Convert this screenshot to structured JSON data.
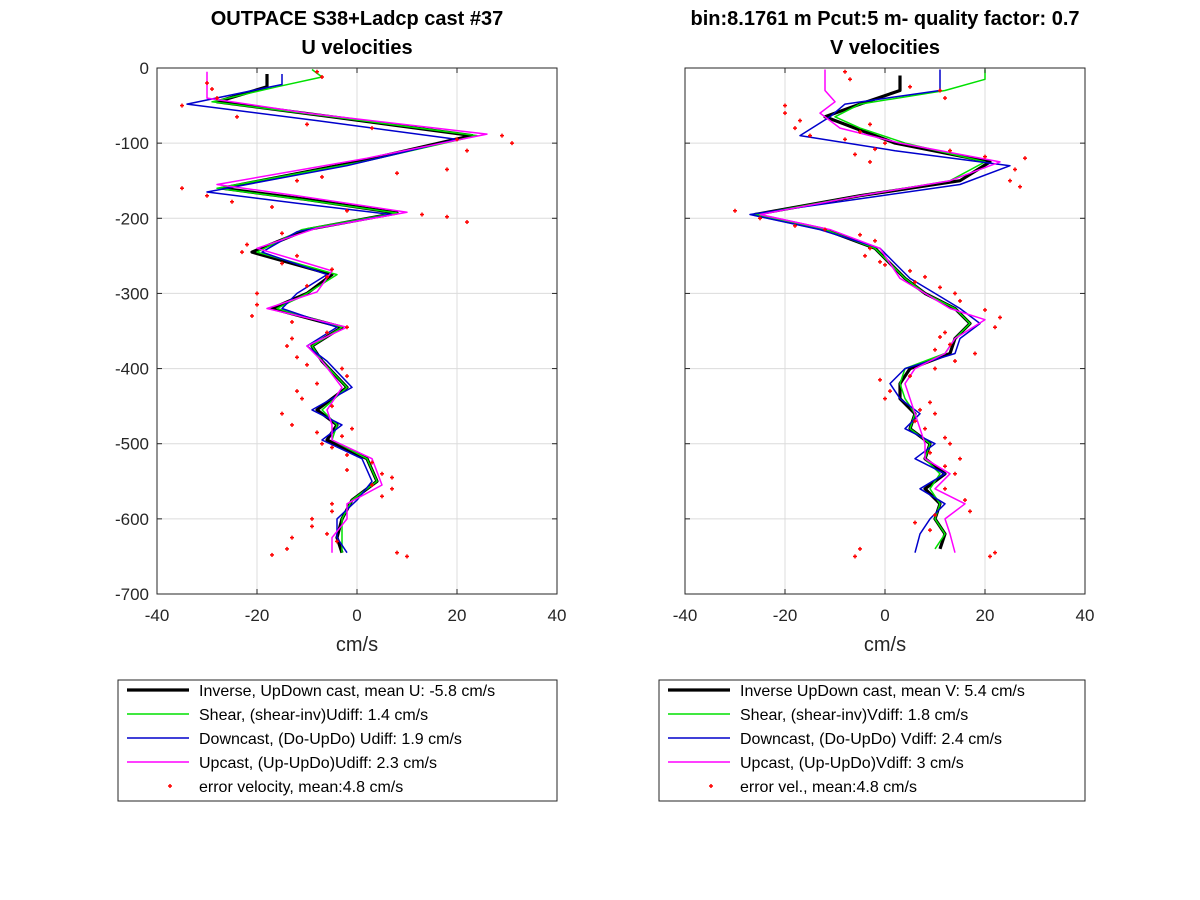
{
  "chart_data": [
    {
      "type": "line",
      "title": "OUTPACE S38+Ladcp cast #37",
      "subtitle": "U velocities",
      "xlabel": "cm/s",
      "ylabel": "",
      "xlim": [
        -40,
        40
      ],
      "ylim": [
        -700,
        0
      ],
      "xticks": [
        -40,
        -20,
        0,
        20,
        40
      ],
      "yticks": [
        0,
        -100,
        -200,
        -300,
        -400,
        -500,
        -600,
        -700
      ],
      "grid": true,
      "legend_position": "below",
      "series": [
        {
          "name": "Inverse, UpDown cast, mean U:  -5.8 cm/s",
          "color": "#000000",
          "width": 3.2,
          "y": [
            -8,
            -25,
            -45,
            -65,
            -90,
            -125,
            -160,
            -175,
            -193,
            -215,
            -245,
            -275,
            -300,
            -320,
            -345,
            -370,
            -390,
            -425,
            -455,
            -475,
            -495,
            -520,
            -550,
            -575,
            -600,
            -625,
            -645
          ],
          "x": [
            -18,
            -18,
            -28,
            -5,
            23,
            0,
            -27,
            -10,
            8,
            -10,
            -21,
            -5,
            -10,
            -17,
            -3,
            -9,
            -7,
            -2,
            -8,
            -4,
            -6,
            2,
            4,
            -1,
            -3,
            -4,
            -3
          ]
        },
        {
          "name": "Shear, (shear-inv)Udiff:  1.4 cm/s",
          "color": "#00e000",
          "width": 1.5,
          "y": [
            -2,
            -12,
            -25,
            -45,
            -65,
            -90,
            -125,
            -160,
            -175,
            -193,
            -215,
            -245,
            -275,
            -300,
            -320,
            -345,
            -370,
            -390,
            -425,
            -455,
            -475,
            -495,
            -520,
            -550,
            -575,
            -600,
            -625,
            -645
          ],
          "x": [
            -9,
            -7,
            -16,
            -29,
            -5,
            24,
            1,
            -28,
            -11,
            8,
            -11,
            -20,
            -4,
            -10,
            -16,
            -3,
            -9,
            -7,
            -2,
            -7,
            -4,
            -5,
            2,
            4,
            -1,
            -3,
            -3,
            -3
          ]
        },
        {
          "name": "Downcast, (Do-UpDo) Udiff:  1.9 cm/s",
          "color": "#0000cc",
          "width": 1.5,
          "y": [
            -8,
            -22,
            -48,
            -70,
            -95,
            -130,
            -165,
            -180,
            -195,
            -218,
            -245,
            -275,
            -300,
            -320,
            -345,
            -370,
            -390,
            -425,
            -455,
            -475,
            -495,
            -520,
            -550,
            -575,
            -600,
            -625,
            -645
          ],
          "x": [
            -15,
            -15,
            -34,
            -8,
            20,
            -2,
            -30,
            -12,
            7,
            -12,
            -19,
            -6,
            -12,
            -15,
            -4,
            -10,
            -6,
            -1,
            -9,
            -3,
            -7,
            1,
            3,
            0,
            -4,
            -4,
            -2
          ]
        },
        {
          "name": "Upcast, (Up-UpDo)Udiff:  2.3 cm/s",
          "color": "#ff00ff",
          "width": 1.5,
          "y": [
            -5,
            -20,
            -40,
            -60,
            -88,
            -120,
            -155,
            -170,
            -192,
            -213,
            -240,
            -270,
            -298,
            -320,
            -345,
            -370,
            -390,
            -425,
            -455,
            -475,
            -495,
            -520,
            -555,
            -580,
            -600,
            -625,
            -645
          ],
          "x": [
            -30,
            -30,
            -30,
            -10,
            26,
            2,
            -28,
            -12,
            10,
            -8,
            -20,
            -5,
            -8,
            -18,
            -2,
            -10,
            -7,
            -3,
            -6,
            -5,
            -5,
            3,
            5,
            -2,
            -2,
            -5,
            -5
          ]
        }
      ],
      "error_velocity": {
        "name": "error velocity, mean:4.8 cm/s",
        "color": "#ff0000",
        "points": [
          [
            -8,
            -5
          ],
          [
            -7,
            -12
          ],
          [
            -30,
            -20
          ],
          [
            -29,
            -28
          ],
          [
            -35,
            -50
          ],
          [
            -28,
            -40
          ],
          [
            -24,
            -65
          ],
          [
            -10,
            -75
          ],
          [
            3,
            -80
          ],
          [
            20,
            -95
          ],
          [
            29,
            -90
          ],
          [
            31,
            -100
          ],
          [
            22,
            -110
          ],
          [
            18,
            -135
          ],
          [
            8,
            -140
          ],
          [
            -7,
            -145
          ],
          [
            -12,
            -150
          ],
          [
            -35,
            -160
          ],
          [
            -30,
            -170
          ],
          [
            -25,
            -178
          ],
          [
            -17,
            -185
          ],
          [
            -2,
            -190
          ],
          [
            13,
            -195
          ],
          [
            18,
            -198
          ],
          [
            22,
            -205
          ],
          [
            -15,
            -220
          ],
          [
            -22,
            -235
          ],
          [
            -23,
            -245
          ],
          [
            -12,
            -250
          ],
          [
            -15,
            -260
          ],
          [
            -5,
            -268
          ],
          [
            -6,
            -278
          ],
          [
            -10,
            -290
          ],
          [
            -20,
            -300
          ],
          [
            -20,
            -315
          ],
          [
            -21,
            -330
          ],
          [
            -13,
            -338
          ],
          [
            -2,
            -345
          ],
          [
            -6,
            -352
          ],
          [
            -13,
            -360
          ],
          [
            -14,
            -370
          ],
          [
            -12,
            -385
          ],
          [
            -10,
            -395
          ],
          [
            -3,
            -400
          ],
          [
            -2,
            -410
          ],
          [
            -8,
            -420
          ],
          [
            -12,
            -430
          ],
          [
            -11,
            -440
          ],
          [
            -5,
            -450
          ],
          [
            -15,
            -460
          ],
          [
            -13,
            -475
          ],
          [
            -1,
            -480
          ],
          [
            -8,
            -485
          ],
          [
            -3,
            -490
          ],
          [
            -7,
            -500
          ],
          [
            -5,
            -505
          ],
          [
            -2,
            -515
          ],
          [
            3,
            -525
          ],
          [
            -2,
            -535
          ],
          [
            5,
            -540
          ],
          [
            7,
            -545
          ],
          [
            3,
            -555
          ],
          [
            7,
            -560
          ],
          [
            5,
            -570
          ],
          [
            -5,
            -580
          ],
          [
            -5,
            -590
          ],
          [
            -9,
            -600
          ],
          [
            -9,
            -610
          ],
          [
            -6,
            -620
          ],
          [
            -13,
            -625
          ],
          [
            -4,
            -630
          ],
          [
            -14,
            -640
          ],
          [
            -17,
            -648
          ],
          [
            8,
            -645
          ],
          [
            10,
            -650
          ]
        ]
      }
    },
    {
      "type": "line",
      "title": "bin:8.1761 m  Pcut:5 m- quality factor:  0.7",
      "subtitle": "V velocities",
      "xlabel": "cm/s",
      "ylabel": "",
      "xlim": [
        -40,
        40
      ],
      "ylim": [
        -700,
        0
      ],
      "xticks": [
        -40,
        -20,
        0,
        20,
        40
      ],
      "yticks": [
        0,
        -100,
        -200,
        -300,
        -400,
        -500,
        -600,
        -700
      ],
      "grid": true,
      "legend_position": "below",
      "series": [
        {
          "name": "Inverse UpDown cast, mean V:  5.4 cm/s",
          "color": "#000000",
          "width": 3.2,
          "y": [
            -10,
            -30,
            -48,
            -65,
            -80,
            -100,
            -125,
            -150,
            -170,
            -195,
            -215,
            -240,
            -260,
            -280,
            -300,
            -320,
            -340,
            -360,
            -380,
            -400,
            -420,
            -440,
            -460,
            -480,
            -500,
            -520,
            -540,
            -560,
            -580,
            -600,
            -620,
            -640
          ],
          "x": [
            3,
            3,
            -5,
            -12,
            -6,
            2,
            21,
            15,
            -5,
            -26,
            -12,
            -2,
            1,
            4,
            8,
            14,
            17,
            14,
            13,
            5,
            3,
            3,
            6,
            5,
            9,
            8,
            12,
            8,
            11,
            10,
            12,
            11
          ]
        },
        {
          "name": "Shear, (shear-inv)Vdiff:  1.8 cm/s",
          "color": "#00e000",
          "width": 1.5,
          "y": [
            -2,
            -15,
            -30,
            -48,
            -65,
            -80,
            -100,
            -125,
            -150,
            -170,
            -195,
            -215,
            -240,
            -260,
            -280,
            -300,
            -320,
            -340,
            -360,
            -380,
            -400,
            -420,
            -440,
            -460,
            -480,
            -500,
            -520,
            -540,
            -560,
            -580,
            -600,
            -620,
            -640
          ],
          "x": [
            20,
            20,
            12,
            -5,
            -10,
            -5,
            4,
            20,
            13,
            -5,
            -26,
            -12,
            -2,
            1,
            4,
            8,
            14,
            17,
            14,
            12,
            4,
            3,
            4,
            6,
            5,
            9,
            8,
            11,
            9,
            11,
            10,
            12,
            10
          ]
        },
        {
          "name": "Downcast, (Do-UpDo) Vdiff:  2.4 cm/s",
          "color": "#0000cc",
          "width": 1.5,
          "y": [
            -2,
            -30,
            -48,
            -65,
            -90,
            -110,
            -130,
            -155,
            -175,
            -195,
            -215,
            -240,
            -260,
            -280,
            -300,
            -320,
            -340,
            -360,
            -380,
            -400,
            -420,
            -440,
            -460,
            -480,
            -500,
            -520,
            -540,
            -560,
            -580,
            -600,
            -620,
            -645
          ],
          "x": [
            11,
            11,
            -8,
            -11,
            -17,
            2,
            25,
            15,
            -6,
            -27,
            -13,
            -1,
            2,
            5,
            10,
            15,
            19,
            15,
            14,
            4,
            1,
            3,
            7,
            4,
            10,
            6,
            12,
            7,
            12,
            9,
            7,
            6
          ]
        },
        {
          "name": "Upcast, (Up-UpDo)Vdiff:  3 cm/s",
          "color": "#ff00ff",
          "width": 1.5,
          "y": [
            -2,
            -30,
            -45,
            -60,
            -80,
            -100,
            -125,
            -150,
            -170,
            -195,
            -215,
            -240,
            -260,
            -280,
            -300,
            -320,
            -335,
            -360,
            -380,
            -400,
            -420,
            -440,
            -460,
            -480,
            -500,
            -520,
            -540,
            -560,
            -580,
            -600,
            -620,
            -645
          ],
          "x": [
            -12,
            -12,
            -10,
            -13,
            -9,
            3,
            23,
            13,
            -5,
            -25,
            -11,
            -1,
            1,
            3,
            8,
            13,
            20,
            14,
            12,
            6,
            4,
            5,
            6,
            7,
            8,
            8,
            13,
            10,
            16,
            12,
            13,
            14
          ]
        }
      ],
      "error_velocity": {
        "name": "error vel., mean:4.8 cm/s",
        "color": "#ff0000",
        "points": [
          [
            -8,
            -5
          ],
          [
            -7,
            -15
          ],
          [
            5,
            -25
          ],
          [
            11,
            -30
          ],
          [
            12,
            -40
          ],
          [
            -20,
            -50
          ],
          [
            -20,
            -60
          ],
          [
            -17,
            -70
          ],
          [
            -18,
            -80
          ],
          [
            -15,
            -90
          ],
          [
            -8,
            -95
          ],
          [
            -5,
            -85
          ],
          [
            -3,
            -75
          ],
          [
            0,
            -100
          ],
          [
            -2,
            -108
          ],
          [
            -6,
            -115
          ],
          [
            -3,
            -125
          ],
          [
            13,
            -110
          ],
          [
            20,
            -118
          ],
          [
            28,
            -120
          ],
          [
            26,
            -135
          ],
          [
            25,
            -150
          ],
          [
            27,
            -158
          ],
          [
            -30,
            -190
          ],
          [
            -25,
            -200
          ],
          [
            -18,
            -210
          ],
          [
            -12,
            -215
          ],
          [
            -5,
            -222
          ],
          [
            -2,
            -230
          ],
          [
            -3,
            -240
          ],
          [
            -4,
            -250
          ],
          [
            -1,
            -258
          ],
          [
            0,
            -262
          ],
          [
            5,
            -270
          ],
          [
            8,
            -278
          ],
          [
            6,
            -285
          ],
          [
            11,
            -292
          ],
          [
            14,
            -300
          ],
          [
            15,
            -310
          ],
          [
            20,
            -322
          ],
          [
            23,
            -332
          ],
          [
            22,
            -345
          ],
          [
            12,
            -352
          ],
          [
            11,
            -358
          ],
          [
            13,
            -368
          ],
          [
            10,
            -375
          ],
          [
            18,
            -380
          ],
          [
            14,
            -390
          ],
          [
            10,
            -400
          ],
          [
            5,
            -410
          ],
          [
            -1,
            -415
          ],
          [
            1,
            -430
          ],
          [
            0,
            -440
          ],
          [
            9,
            -445
          ],
          [
            7,
            -455
          ],
          [
            10,
            -460
          ],
          [
            6,
            -470
          ],
          [
            8,
            -480
          ],
          [
            12,
            -492
          ],
          [
            13,
            -500
          ],
          [
            9,
            -512
          ],
          [
            15,
            -520
          ],
          [
            12,
            -530
          ],
          [
            14,
            -540
          ],
          [
            12,
            -560
          ],
          [
            16,
            -575
          ],
          [
            17,
            -590
          ],
          [
            10,
            -595
          ],
          [
            6,
            -605
          ],
          [
            9,
            -615
          ],
          [
            -5,
            -640
          ],
          [
            -6,
            -650
          ],
          [
            21,
            -650
          ],
          [
            22,
            -645
          ]
        ]
      }
    }
  ]
}
